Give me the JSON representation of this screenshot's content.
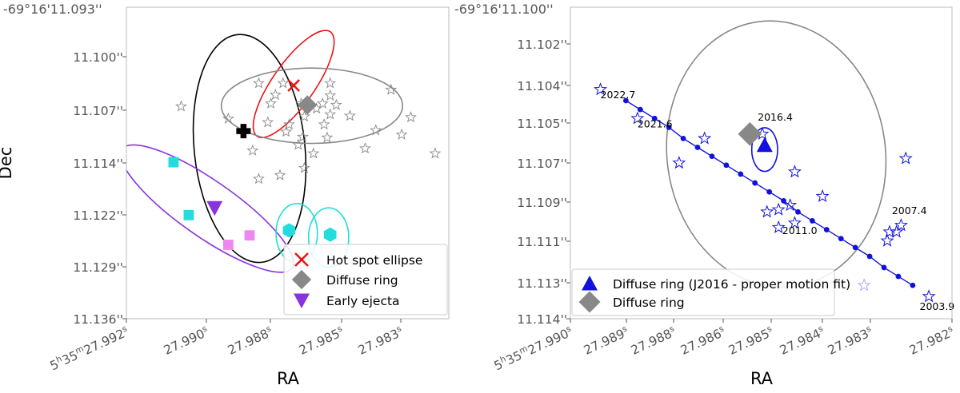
{
  "chart_data": [
    {
      "type": "scatter",
      "xlabel": "RA",
      "ylabel": "Dec",
      "top_label": "-69°16'11.093''",
      "yticks": [
        "11.100''",
        "11.107''",
        "11.114''",
        "11.122''",
        "11.129''",
        "11.136''"
      ],
      "xticks": [
        {
          "prefix": "5",
          "h": "h",
          "mid": "35",
          "m": "m",
          "sec": "27.992",
          "s": "s"
        },
        {
          "prefix": "",
          "h": "",
          "mid": "",
          "m": "",
          "sec": "27.990",
          "s": "s"
        },
        {
          "prefix": "",
          "h": "",
          "mid": "",
          "m": "",
          "sec": "27.988",
          "s": "s"
        },
        {
          "prefix": "",
          "h": "",
          "mid": "",
          "m": "",
          "sec": "27.985",
          "s": "s"
        },
        {
          "prefix": "",
          "h": "",
          "mid": "",
          "m": "",
          "sec": "27.983",
          "s": "s"
        }
      ],
      "xlim": [
        27.9924,
        27.9818
      ],
      "ylim": [
        11.093,
        11.136
      ],
      "grid": false,
      "legend_position": "lower-right",
      "legend": [
        {
          "label": "Hot spot ellipse",
          "marker": "x",
          "color": "#ee1111"
        },
        {
          "label": "Diffuse ring",
          "marker": "diamond",
          "color": "#888888"
        },
        {
          "label": "Early ejecta",
          "marker": "triangle-down",
          "color": "#8833dd"
        }
      ],
      "stars": [
        [
          27.9906,
          11.1067
        ],
        [
          27.98805,
          11.1035
        ],
        [
          27.98725,
          11.1035
        ],
        [
          27.9857,
          11.1035
        ],
        [
          27.9837,
          11.1044
        ],
        [
          27.9875,
          11.1051
        ],
        [
          27.9857,
          11.1052
        ],
        [
          27.98765,
          11.1063
        ],
        [
          27.98665,
          11.1063
        ],
        [
          27.98595,
          11.1063
        ],
        [
          27.9855,
          11.1065
        ],
        [
          27.98615,
          11.107
        ],
        [
          27.9857,
          11.1078
        ],
        [
          27.98655,
          11.1081
        ],
        [
          27.98505,
          11.108
        ],
        [
          27.98305,
          11.1082
        ],
        [
          27.98905,
          11.1084
        ],
        [
          27.98775,
          11.1089
        ],
        [
          27.98705,
          11.1092
        ],
        [
          27.9859,
          11.1092
        ],
        [
          27.98715,
          11.1102
        ],
        [
          27.9842,
          11.11
        ],
        [
          27.9866,
          11.1109
        ],
        [
          27.9858,
          11.111
        ],
        [
          27.98335,
          11.1106
        ],
        [
          27.98675,
          11.112
        ],
        [
          27.98455,
          11.1125
        ],
        [
          27.98825,
          11.1128
        ],
        [
          27.98625,
          11.1132
        ],
        [
          27.98225,
          11.1132
        ],
        [
          27.98655,
          11.1152
        ],
        [
          27.98735,
          11.1162
        ],
        [
          27.98805,
          11.1167
        ]
      ],
      "ellipses": [
        {
          "name": "black ellipse",
          "color": "#000000",
          "cx": 27.98835,
          "cy": 11.1125,
          "rx": 0.00182,
          "ry": 0.0158,
          "angle": -6
        },
        {
          "name": "red ellipse",
          "color": "#ee1111",
          "cx": 27.9869,
          "cy": 11.1036,
          "rx": 0.00069,
          "ry": 0.0088,
          "angle": 35
        },
        {
          "name": "gray ellipse",
          "color": "#888888",
          "cx": 27.9863,
          "cy": 11.1066,
          "rx": 0.00298,
          "ry": 0.0052,
          "angle": 0
        },
        {
          "name": "purple ellipse",
          "color": "#8833dd",
          "cx": 27.98975,
          "cy": 11.1208,
          "rx": 0.00092,
          "ry": 0.0143,
          "angle": -55
        },
        {
          "name": "cyan ellipse 1",
          "color": "#22dddd",
          "cx": 27.9868,
          "cy": 11.1242,
          "rx": 0.00068,
          "ry": 0.0041,
          "angle": 0
        },
        {
          "name": "cyan ellipse 2",
          "color": "#22dddd",
          "cx": 27.98575,
          "cy": 11.1248,
          "rx": 0.00066,
          "ry": 0.0041,
          "angle": 0
        }
      ],
      "points": [
        {
          "name": "red x",
          "marker": "x",
          "color": "#ee1111",
          "x": 27.9869,
          "y": 11.1038
        },
        {
          "name": "gray diamond",
          "marker": "diamond",
          "color": "#888888",
          "x": 27.98645,
          "y": 11.1065
        },
        {
          "name": "black plus",
          "marker": "plus",
          "color": "#000000",
          "x": 27.98855,
          "y": 11.1101
        },
        {
          "name": "purple triangle",
          "marker": "triangle-down",
          "color": "#8833dd",
          "x": 27.9895,
          "y": 11.1207
        },
        {
          "name": "cyan square",
          "marker": "square",
          "color": "#22dddd",
          "x": 27.99085,
          "y": 11.1144
        },
        {
          "name": "cyan square",
          "marker": "square",
          "color": "#22dddd",
          "x": 27.99035,
          "y": 11.1217
        },
        {
          "name": "violet square",
          "marker": "square",
          "color": "#ee88ee",
          "x": 27.98905,
          "y": 11.1258
        },
        {
          "name": "violet square",
          "marker": "square",
          "color": "#ee88ee",
          "x": 27.98835,
          "y": 11.1245
        },
        {
          "name": "cyan hexagon",
          "marker": "hexagon",
          "color": "#22dddd",
          "x": 27.98705,
          "y": 11.1238
        },
        {
          "name": "cyan hexagon",
          "marker": "hexagon",
          "color": "#22dddd",
          "x": 27.9857,
          "y": 11.1244
        }
      ]
    },
    {
      "type": "scatter",
      "xlabel": "RA",
      "ylabel": "",
      "top_label": "-69°16'11.100''",
      "yticks": [
        "11.102''",
        "11.104''",
        "11.105''",
        "11.107''",
        "11.109''",
        "11.111''",
        "11.113''",
        "11.114''"
      ],
      "xticks": [
        {
          "prefix": "5",
          "h": "h",
          "mid": "35",
          "m": "m",
          "sec": "27.990",
          "s": "s"
        },
        {
          "prefix": "",
          "h": "",
          "mid": "",
          "m": "",
          "sec": "27.989",
          "s": "s"
        },
        {
          "prefix": "",
          "h": "",
          "mid": "",
          "m": "",
          "sec": "27.988",
          "s": "s"
        },
        {
          "prefix": "",
          "h": "",
          "mid": "",
          "m": "",
          "sec": "27.986",
          "s": "s"
        },
        {
          "prefix": "",
          "h": "",
          "mid": "",
          "m": "",
          "sec": "27.985",
          "s": "s"
        },
        {
          "prefix": "",
          "h": "",
          "mid": "",
          "m": "",
          "sec": "27.984",
          "s": "s"
        },
        {
          "prefix": "",
          "h": "",
          "mid": "",
          "m": "",
          "sec": "27.983",
          "s": "s"
        },
        {
          "prefix": "",
          "h": "",
          "mid": "",
          "m": "",
          "sec": "27.982",
          "s": "s"
        }
      ],
      "xlim": [
        27.99,
        27.98175
      ],
      "ylim": [
        11.1,
        11.114
      ],
      "grid": false,
      "legend_position": "lower-left",
      "legend": [
        {
          "label": "Diffuse ring (J2016 - proper motion fit)",
          "marker": "triangle-up",
          "color": "#1111dd"
        },
        {
          "label": "Diffuse ring",
          "marker": "diamond",
          "color": "#888888"
        }
      ],
      "stars": [
        [
          27.98935,
          11.1037
        ],
        [
          27.98855,
          11.105
        ],
        [
          27.9871,
          11.1059
        ],
        [
          27.98765,
          11.107
        ],
        [
          27.98585,
          11.1057
        ],
        [
          27.98515,
          11.1074
        ],
        [
          27.98275,
          11.1068
        ],
        [
          27.98455,
          11.1085
        ],
        [
          27.98525,
          11.1089
        ],
        [
          27.9855,
          11.1091
        ],
        [
          27.98575,
          11.1092
        ],
        [
          27.98515,
          11.1097
        ],
        [
          27.9855,
          11.1099
        ],
        [
          27.98285,
          11.1098
        ],
        [
          27.98295,
          11.1101
        ],
        [
          27.9831,
          11.1101
        ],
        [
          27.98315,
          11.1105
        ],
        [
          27.98225,
          11.113
        ]
      ],
      "faint_stars": [
        [
          27.98365,
          11.1125
        ]
      ],
      "ellipses": [
        {
          "name": "gray ellipse",
          "color": "#888888",
          "cx": 27.98555,
          "cy": 11.1066,
          "rx": 0.00236,
          "ry": 0.006,
          "angle": -8
        },
        {
          "name": "blue ellipse",
          "color": "#1111dd",
          "cx": 27.9858,
          "cy": 11.1064,
          "rx": 0.00028,
          "ry": 0.00098,
          "angle": 0
        }
      ],
      "trajectory": {
        "name": "proper motion track",
        "color": "#1111dd",
        "x": [
          27.9888,
          27.98849,
          27.98818,
          27.98787,
          27.98756,
          27.98725,
          27.98694,
          27.98663,
          27.98632,
          27.98601,
          27.9857,
          27.98539,
          27.98508,
          27.98477,
          27.98446,
          27.98415,
          27.98384,
          27.98353,
          27.98322,
          27.98291,
          27.9826
        ],
        "y": [
          11.1042,
          11.1046,
          11.105,
          11.1054,
          11.1059,
          11.1063,
          11.1067,
          11.1071,
          11.1075,
          11.1079,
          11.1083,
          11.1087,
          11.1092,
          11.1096,
          11.11,
          11.1104,
          11.1108,
          11.1112,
          11.1117,
          11.1121,
          11.1125
        ],
        "epochs": [
          2022.7,
          2021.6,
          2016.4,
          2011.0,
          2007.4,
          2003.9
        ]
      },
      "points": [
        {
          "name": "gray diamond",
          "marker": "diamond",
          "color": "#888888",
          "x": 27.98612,
          "y": 11.1057
        },
        {
          "name": "blue triangle",
          "marker": "triangle-up",
          "color": "#1111dd",
          "x": 27.9858,
          "y": 11.1062
        }
      ],
      "annotations": [
        {
          "text": "2022.7",
          "x": 27.98935,
          "y": 11.1041
        },
        {
          "text": "2021.6",
          "x": 27.98855,
          "y": 11.1054
        },
        {
          "text": "2016.4",
          "x": 27.98595,
          "y": 11.1051
        },
        {
          "text": "2011.0",
          "x": 27.98542,
          "y": 11.1102
        },
        {
          "text": "2007.4",
          "x": 27.98305,
          "y": 11.1093
        },
        {
          "text": "2003.9",
          "x": 27.98245,
          "y": 11.1136
        }
      ]
    }
  ]
}
